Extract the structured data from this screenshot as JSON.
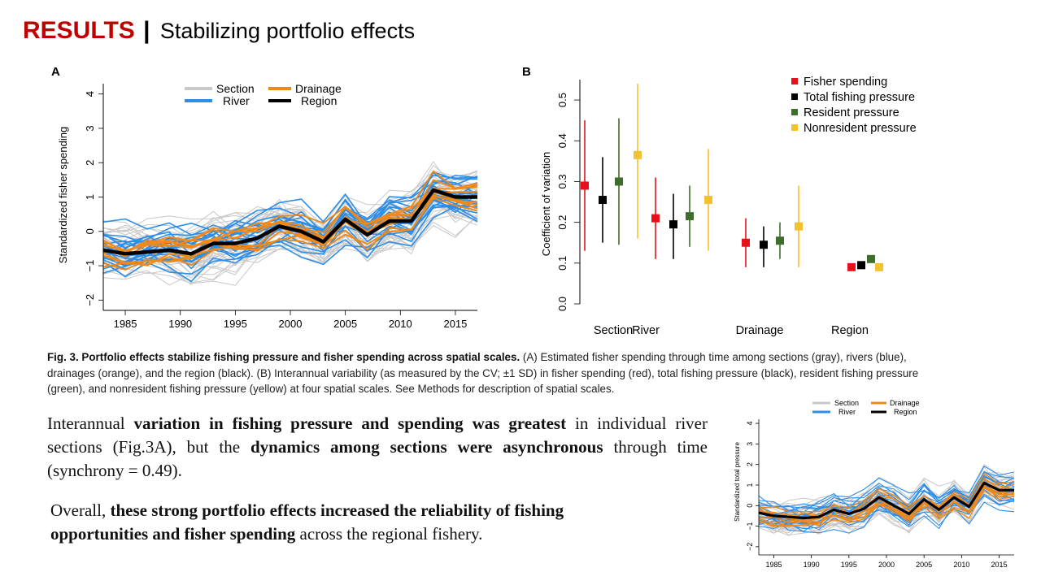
{
  "slide": {
    "title_main": "RESULTS",
    "title_sep": "|",
    "title_sub": "Stabilizing portfolio effects"
  },
  "figure_a": {
    "panel_label": "A",
    "ylabel": "Standardized fisher spending",
    "legend": [
      "Section",
      "Drainage",
      "River",
      "Region"
    ],
    "colors": {
      "Section": "#c8c8c8",
      "River": "#2d8ee8",
      "Drainage": "#f0891a",
      "Region": "#000000"
    },
    "xticks": [
      "1985",
      "1990",
      "1995",
      "2000",
      "2005",
      "2010",
      "2015"
    ],
    "yticks": [
      "−2",
      "−1",
      "0",
      "1",
      "2",
      "3",
      "4"
    ],
    "chart_data": {
      "type": "line",
      "x": [
        1983,
        1985,
        1987,
        1989,
        1991,
        1993,
        1995,
        1997,
        1999,
        2001,
        2003,
        2005,
        2007,
        2009,
        2011,
        2013,
        2015,
        2017
      ],
      "series": [
        {
          "name": "Region",
          "values": [
            -0.55,
            -0.65,
            -0.6,
            -0.55,
            -0.65,
            -0.35,
            -0.35,
            -0.2,
            0.15,
            0.0,
            -0.3,
            0.35,
            -0.1,
            0.3,
            0.3,
            1.2,
            1.0,
            1.0
          ]
        }
      ],
      "xlim": [
        1983,
        2017
      ],
      "ylim": [
        -2.3,
        4.3
      ]
    }
  },
  "figure_b": {
    "panel_label": "B",
    "ylabel": "Coefficient of variation",
    "yticks": [
      "0.0",
      "0.1",
      "0.2",
      "0.3",
      "0.4",
      "0.5"
    ],
    "legend": [
      "Fisher spending",
      "Total fishing pressure",
      "Resident pressure",
      "Nonresident pressure"
    ],
    "colors": {
      "Fisher spending": "#e8101a",
      "Total fishing pressure": "#000000",
      "Resident pressure": "#3e6e2c",
      "Nonresident pressure": "#f2c12e"
    },
    "chart_data": {
      "type": "scatter",
      "categories": [
        "Section",
        "River",
        "Drainage",
        "Region"
      ],
      "series": [
        {
          "name": "Fisher spending",
          "values": [
            0.29,
            0.21,
            0.15,
            0.09
          ],
          "sd_low": [
            0.13,
            0.11,
            0.09,
            null
          ],
          "sd_high": [
            0.45,
            0.31,
            0.21,
            null
          ]
        },
        {
          "name": "Total fishing pressure",
          "values": [
            0.255,
            0.195,
            0.145,
            0.095
          ],
          "sd_low": [
            0.15,
            0.11,
            0.09,
            null
          ],
          "sd_high": [
            0.36,
            0.27,
            0.19,
            null
          ]
        },
        {
          "name": "Resident pressure",
          "values": [
            0.3,
            0.215,
            0.155,
            0.11
          ],
          "sd_low": [
            0.145,
            0.14,
            0.11,
            null
          ],
          "sd_high": [
            0.455,
            0.29,
            0.2,
            null
          ]
        },
        {
          "name": "Nonresident pressure",
          "values": [
            0.365,
            0.255,
            0.19,
            0.09
          ],
          "sd_low": [
            0.16,
            0.13,
            0.09,
            null
          ],
          "sd_high": [
            0.54,
            0.38,
            0.29,
            null
          ]
        }
      ],
      "ylim": [
        0,
        0.55
      ]
    }
  },
  "caption": {
    "heading": "Fig. 3. Portfolio effects stabilize fishing pressure and fisher spending across spatial scales.",
    "text": " (A) Estimated fisher spending through time among sections (gray), rivers (blue), drainages (orange), and the region (black). (B) Interannual variability (as measured by the CV; ±1 SD) in fisher spending (red), total fishing pressure (black), resident fishing pressure (green), and nonresident fishing pressure (yellow) at four spatial scales. See Methods for description of spatial scales."
  },
  "paragraph1": {
    "t1": "Interannual ",
    "b1": "variation in fishing pressure and spending was greatest",
    "t2": " in individual river sections (Fig.3A), but the ",
    "b2": "dynamics among sections were asynchronous",
    "t3": " through time (synchrony = 0.49)."
  },
  "paragraph2": {
    "t1": "Overall, ",
    "b1": "these strong portfolio effects increased the reliability of fishing opportunities and fisher spending",
    "t2": " across the regional fishery."
  },
  "thumbnail": {
    "ylabel": "Standardized total pressure",
    "legend": [
      "Section",
      "Drainage",
      "River",
      "Region"
    ],
    "xticks": [
      "1985",
      "1990",
      "1995",
      "2000",
      "2005",
      "2010",
      "2015"
    ],
    "yticks": [
      "−2",
      "−1",
      "0",
      "1",
      "2",
      "3",
      "4"
    ],
    "chart_data": {
      "type": "line",
      "x": [
        1983,
        1985,
        1987,
        1989,
        1991,
        1993,
        1995,
        1997,
        1999,
        2001,
        2003,
        2005,
        2007,
        2009,
        2011,
        2013,
        2015,
        2017
      ],
      "series": [
        {
          "name": "Region",
          "values": [
            -0.35,
            -0.5,
            -0.55,
            -0.6,
            -0.55,
            -0.2,
            -0.4,
            -0.15,
            0.4,
            0.0,
            -0.4,
            0.3,
            -0.2,
            0.4,
            -0.05,
            1.1,
            0.75,
            0.75
          ]
        }
      ],
      "xlim": [
        1983,
        2017
      ],
      "ylim": [
        -2.4,
        4.2
      ]
    }
  }
}
